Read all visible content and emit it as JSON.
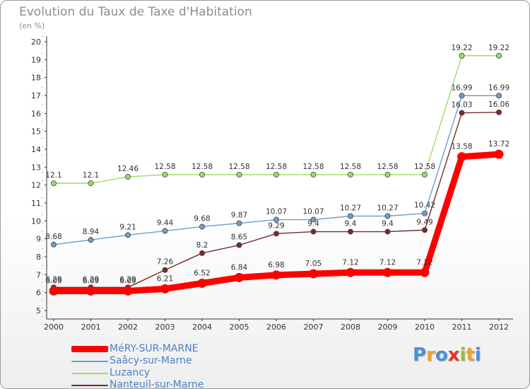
{
  "chart_data": {
    "type": "line",
    "title": "Evolution du Taux de Taxe d'Habitation",
    "subtitle": "(en %)",
    "x": [
      "2000",
      "2001",
      "2002",
      "2003",
      "2004",
      "2005",
      "2006",
      "2007",
      "2008",
      "2009",
      "2010",
      "2011",
      "2012"
    ],
    "yticks": [
      "5",
      "6",
      "7",
      "8",
      "9",
      "10",
      "11",
      "12",
      "13",
      "14",
      "15",
      "16",
      "17",
      "18",
      "19",
      "20"
    ],
    "ylim": [
      5,
      20
    ],
    "grid": false,
    "legend_position": "bottom-left",
    "series": [
      {
        "name": "MéRY-SUR-MARNE",
        "color": "#ff0000",
        "values": [
          6.09,
          6.09,
          6.09,
          6.21,
          6.52,
          6.84,
          6.98,
          7.05,
          7.12,
          7.12,
          7.12,
          13.58,
          13.72
        ],
        "labels": [
          "6.09",
          "6.09",
          "6.09",
          "6.21",
          "6.52",
          "6.84",
          "6.98",
          "7.05",
          "7.12",
          "7.12",
          "7.12",
          "13.58",
          "13.72"
        ]
      },
      {
        "name": "Saâcy-sur-Marne",
        "color": "#6a9fd0",
        "values": [
          8.68,
          8.94,
          9.21,
          9.44,
          9.68,
          9.87,
          10.07,
          10.07,
          10.27,
          10.27,
          10.42,
          16.99,
          16.99
        ],
        "labels": [
          "8.68",
          "8.94",
          "9.21",
          "9.44",
          "9.68",
          "9.87",
          "10.07",
          "10.07",
          "10.27",
          "10.27",
          "10.42",
          "16.99",
          "16.99"
        ]
      },
      {
        "name": "Luzancy",
        "color": "#99dd66",
        "values": [
          12.1,
          12.1,
          12.46,
          12.58,
          12.58,
          12.58,
          12.58,
          12.58,
          12.58,
          12.58,
          12.58,
          19.22,
          19.22
        ],
        "labels": [
          "12.1",
          "12.1",
          "12.46",
          "12.58",
          "12.58",
          "12.58",
          "12.58",
          "12.58",
          "12.58",
          "12.58",
          "12.58",
          "19.22",
          "19.22"
        ]
      },
      {
        "name": "Nanteuil-sur-Marne",
        "color": "#7a2a2a",
        "values": [
          6.29,
          6.29,
          6.29,
          7.26,
          8.2,
          8.65,
          9.29,
          9.4,
          9.4,
          9.4,
          9.49,
          16.03,
          16.06
        ],
        "labels": [
          "6.29",
          "6.29",
          "6.29",
          "7.26",
          "8.2",
          "8.65",
          "9.29",
          "9.4",
          "9.4",
          "9.4",
          "9.49",
          "16.03",
          "16.06"
        ]
      }
    ]
  },
  "legend": {
    "items": [
      {
        "label": "MéRY-SUR-MARNE",
        "color": "#ff0000"
      },
      {
        "label": "Saâcy-sur-Marne",
        "color": "#6a9fd0"
      },
      {
        "label": "Luzancy",
        "color": "#99dd66"
      },
      {
        "label": "Nanteuil-sur-Marne",
        "color": "#7a2a2a"
      }
    ]
  },
  "brand": {
    "text": "Proxiti",
    "letters": [
      "P",
      "r",
      "o",
      "x",
      "i",
      "t",
      "i"
    ],
    "colors": [
      "#4a90d9",
      "#f0a030",
      "#4a90d9",
      "#e83030",
      "#90c040",
      "#f0a030",
      "#4a90d9"
    ]
  }
}
